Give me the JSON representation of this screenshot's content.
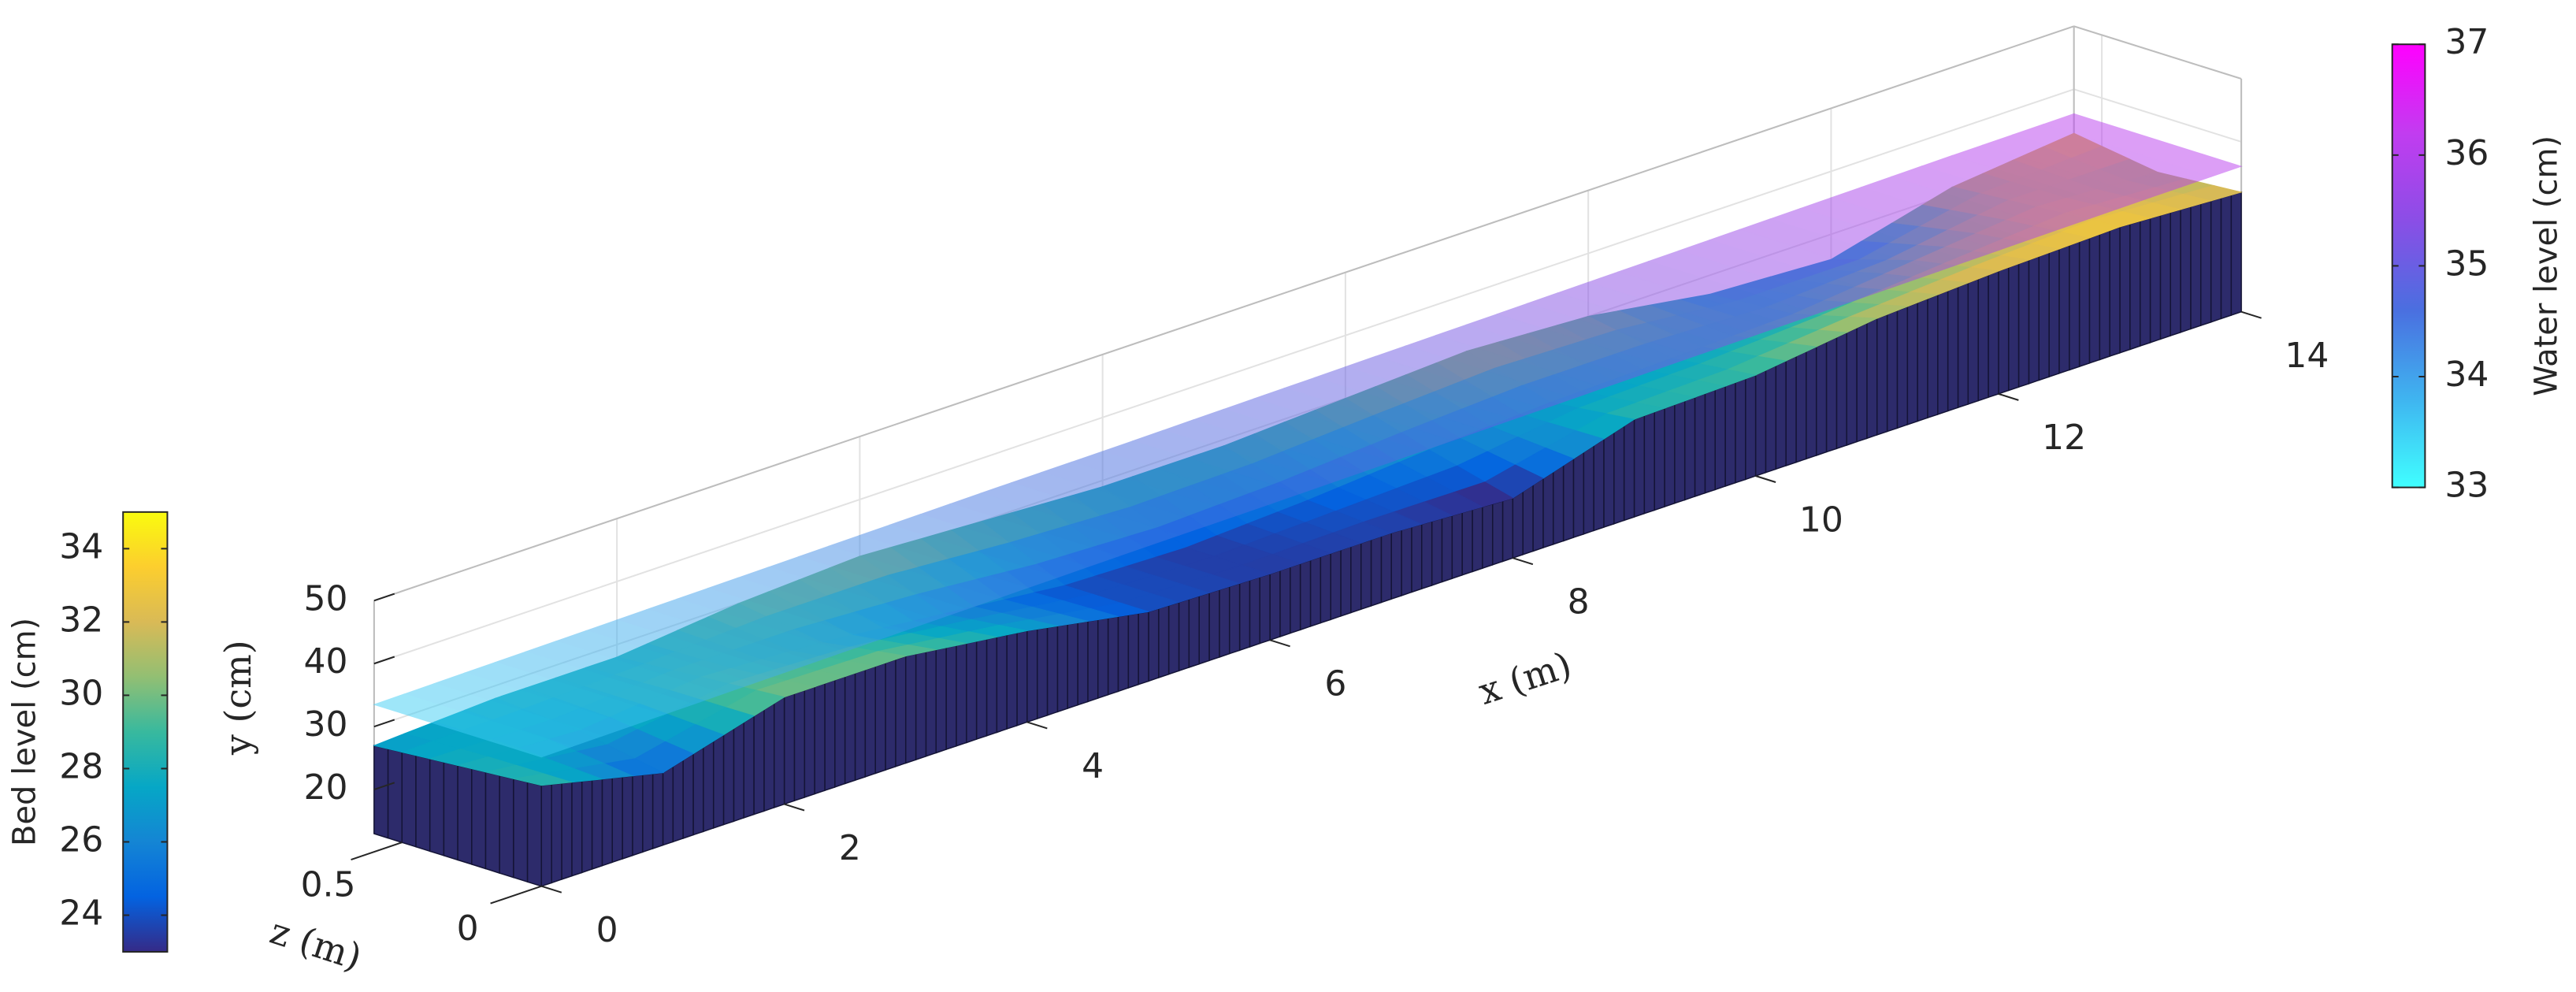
{
  "chart_data": {
    "type": "surface3d",
    "x_label": "x (m)",
    "y_label": "y (cm)",
    "z_label": "z (m)",
    "xlim": [
      0,
      14
    ],
    "xticks": [
      0,
      2,
      4,
      6,
      8,
      10,
      12,
      14
    ],
    "ylim": [
      13,
      50
    ],
    "yticks": [
      20,
      30,
      40,
      50
    ],
    "zlim": [
      0,
      0.6
    ],
    "zticks": [
      0,
      0.5
    ],
    "grid": true,
    "x": [
      0,
      1,
      2,
      3,
      4,
      5,
      6,
      7,
      8,
      9,
      10,
      11,
      12,
      13,
      14
    ],
    "z": [
      0,
      0.3,
      0.6
    ],
    "bed": {
      "rows": [
        [
          29,
          24.5,
          30,
          30,
          27.5,
          24,
          23.5,
          23.5,
          22.5,
          28.5,
          29,
          31.5,
          32.5,
          33,
          32
        ],
        [
          28,
          27,
          29,
          28,
          26,
          24,
          23.5,
          24.5,
          26,
          27,
          27.5,
          28,
          30,
          32,
          31
        ],
        [
          27,
          28,
          28,
          30,
          31,
          30,
          29,
          29,
          30,
          31,
          30,
          27,
          26,
          31,
          33
        ]
      ],
      "face_color": "#2d2b6b"
    },
    "water": {
      "values": [
        33.5,
        33.7,
        33.9,
        34.1,
        34.3,
        34.5,
        34.6,
        34.8,
        35,
        35.2,
        35.4,
        35.6,
        35.8,
        36,
        36.1
      ],
      "opacity": 0.5
    },
    "bed_colorbar": {
      "label": "Bed level (cm)",
      "lim": [
        23,
        35
      ],
      "ticks": [
        24,
        26,
        28,
        30,
        32,
        34
      ],
      "colormap": [
        "#352a87",
        "#0363e1",
        "#1485d4",
        "#06a7c6",
        "#38b99e",
        "#92bf73",
        "#d9ba56",
        "#fcce2e",
        "#f9fb0e"
      ]
    },
    "water_colorbar": {
      "label": "Water level (cm)",
      "lim": [
        33,
        37
      ],
      "ticks": [
        33,
        34,
        35,
        36,
        37
      ],
      "colormap": [
        "#40ffff",
        "#3fb4f0",
        "#4a6fe0",
        "#8a4ee6",
        "#c23cf0",
        "#ff00ff"
      ]
    }
  }
}
